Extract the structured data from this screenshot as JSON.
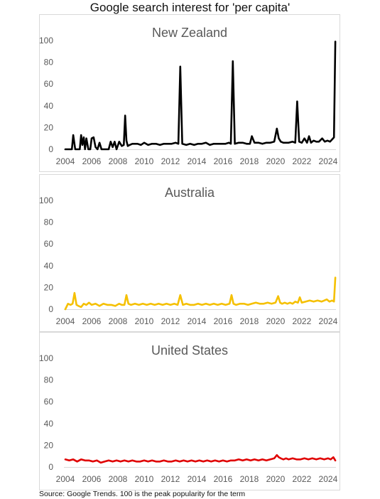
{
  "title": "Google search interest for 'per capita'",
  "source": "Source: Google Trends.  100 is the peak popularity for the term",
  "chart_data": [
    {
      "type": "line",
      "title": "New Zealand",
      "color": "#000000",
      "ylim": [
        0,
        100
      ],
      "yticks": [
        "0",
        "20",
        "40",
        "60",
        "80",
        "100"
      ],
      "xlim": [
        2004,
        2024.6
      ],
      "xticks": [
        "2004",
        "2006",
        "2008",
        "2010",
        "2012",
        "2014",
        "2016",
        "2018",
        "2020",
        "2022",
        "2024"
      ],
      "grid": false,
      "series": [
        {
          "x": [
            2004.0,
            2004.3,
            2004.5,
            2004.6,
            2004.75,
            2004.9,
            2005.1,
            2005.2,
            2005.3,
            2005.4,
            2005.5,
            2005.6,
            2005.75,
            2005.9,
            2006.0,
            2006.15,
            2006.3,
            2006.45,
            2006.6,
            2006.75,
            2006.9,
            2007.1,
            2007.3,
            2007.45,
            2007.6,
            2007.75,
            2007.9,
            2008.1,
            2008.3,
            2008.45,
            2008.55,
            2008.65,
            2008.75,
            2008.9,
            2009.1,
            2009.3,
            2009.5,
            2009.75,
            2010.0,
            2010.3,
            2010.6,
            2010.9,
            2011.2,
            2011.5,
            2011.8,
            2012.1,
            2012.4,
            2012.6,
            2012.75,
            2012.9,
            2013.2,
            2013.5,
            2013.8,
            2014.1,
            2014.4,
            2014.7,
            2015.0,
            2015.3,
            2015.6,
            2015.9,
            2016.2,
            2016.45,
            2016.6,
            2016.75,
            2016.9,
            2017.2,
            2017.5,
            2017.8,
            2018.05,
            2018.2,
            2018.4,
            2018.7,
            2019.0,
            2019.3,
            2019.6,
            2019.9,
            2020.1,
            2020.25,
            2020.4,
            2020.6,
            2020.8,
            2021.0,
            2021.3,
            2021.5,
            2021.65,
            2021.8,
            2022.0,
            2022.2,
            2022.4,
            2022.55,
            2022.7,
            2022.9,
            2023.1,
            2023.3,
            2023.55,
            2023.75,
            2023.95,
            2024.15,
            2024.3,
            2024.45,
            2024.55
          ],
          "y": [
            0,
            0,
            0,
            13,
            0,
            0,
            0,
            13,
            4,
            11,
            0,
            10,
            0,
            0,
            10,
            11,
            2,
            0,
            6,
            0,
            0,
            0,
            0,
            7,
            2,
            7,
            0,
            7,
            3,
            4,
            31,
            8,
            3,
            4,
            5,
            5,
            5,
            4,
            6,
            4,
            5,
            5,
            4,
            5,
            5,
            5,
            6,
            5,
            76,
            5,
            4,
            5,
            4,
            5,
            5,
            6,
            4,
            5,
            5,
            5,
            5,
            6,
            5,
            81,
            5,
            6,
            6,
            5,
            5,
            12,
            6,
            6,
            5,
            6,
            6,
            7,
            19,
            10,
            7,
            6,
            6,
            6,
            7,
            6,
            44,
            7,
            6,
            10,
            6,
            12,
            6,
            8,
            7,
            7,
            10,
            7,
            8,
            7,
            9,
            11,
            99
          ]
        }
      ]
    },
    {
      "type": "line",
      "title": "Australia",
      "color": "#f5c000",
      "ylim": [
        0,
        100
      ],
      "yticks": [
        "0",
        "20",
        "40",
        "60",
        "80",
        "100"
      ],
      "xlim": [
        2004,
        2024.6
      ],
      "xticks": [
        "2004",
        "2006",
        "2008",
        "2010",
        "2012",
        "2014",
        "2016",
        "2018",
        "2020",
        "2022",
        "2024"
      ],
      "grid": false,
      "series": [
        {
          "x": [
            2004.0,
            2004.2,
            2004.4,
            2004.55,
            2004.7,
            2004.85,
            2005.0,
            2005.2,
            2005.4,
            2005.6,
            2005.8,
            2006.0,
            2006.3,
            2006.6,
            2006.9,
            2007.2,
            2007.5,
            2007.8,
            2008.1,
            2008.3,
            2008.5,
            2008.65,
            2008.8,
            2009.0,
            2009.3,
            2009.6,
            2009.9,
            2010.2,
            2010.5,
            2010.8,
            2011.1,
            2011.4,
            2011.7,
            2012.0,
            2012.3,
            2012.55,
            2012.75,
            2012.95,
            2013.2,
            2013.5,
            2013.8,
            2014.1,
            2014.4,
            2014.7,
            2015.0,
            2015.3,
            2015.6,
            2015.9,
            2016.2,
            2016.5,
            2016.65,
            2016.8,
            2017.0,
            2017.3,
            2017.6,
            2017.9,
            2018.2,
            2018.5,
            2018.8,
            2019.1,
            2019.4,
            2019.7,
            2020.0,
            2020.2,
            2020.35,
            2020.5,
            2020.7,
            2020.9,
            2021.1,
            2021.3,
            2021.5,
            2021.7,
            2021.85,
            2022.0,
            2022.3,
            2022.6,
            2022.9,
            2023.2,
            2023.5,
            2023.7,
            2023.9,
            2024.1,
            2024.3,
            2024.45,
            2024.55
          ],
          "y": [
            0,
            5,
            4,
            5,
            15,
            4,
            3,
            2,
            5,
            4,
            6,
            4,
            5,
            3,
            5,
            4,
            4,
            3,
            5,
            4,
            4,
            13,
            5,
            4,
            5,
            4,
            5,
            4,
            5,
            4,
            5,
            4,
            5,
            4,
            5,
            4,
            13,
            4,
            5,
            4,
            4,
            5,
            4,
            5,
            4,
            5,
            4,
            5,
            4,
            5,
            13,
            5,
            4,
            5,
            5,
            4,
            5,
            6,
            5,
            5,
            6,
            5,
            6,
            12,
            6,
            5,
            6,
            5,
            6,
            5,
            7,
            6,
            11,
            6,
            7,
            8,
            7,
            8,
            7,
            8,
            9,
            7,
            8,
            7,
            29
          ]
        }
      ]
    },
    {
      "type": "line",
      "title": "United States",
      "color": "#e00000",
      "ylim": [
        0,
        100
      ],
      "yticks": [
        "0",
        "20",
        "40",
        "60",
        "80",
        "100"
      ],
      "xlim": [
        2004,
        2024.6
      ],
      "xticks": [
        "2004",
        "2006",
        "2008",
        "2010",
        "2012",
        "2014",
        "2016",
        "2018",
        "2020",
        "2022",
        "2024"
      ],
      "grid": false,
      "series": [
        {
          "x": [
            2004.0,
            2004.3,
            2004.6,
            2004.9,
            2005.2,
            2005.5,
            2005.8,
            2006.1,
            2006.4,
            2006.7,
            2007.0,
            2007.3,
            2007.6,
            2007.9,
            2008.2,
            2008.5,
            2008.8,
            2009.1,
            2009.4,
            2009.7,
            2010.0,
            2010.3,
            2010.6,
            2010.9,
            2011.2,
            2011.5,
            2011.8,
            2012.1,
            2012.4,
            2012.7,
            2013.0,
            2013.3,
            2013.6,
            2013.9,
            2014.2,
            2014.5,
            2014.8,
            2015.1,
            2015.4,
            2015.7,
            2016.0,
            2016.3,
            2016.6,
            2016.9,
            2017.2,
            2017.5,
            2017.8,
            2018.1,
            2018.4,
            2018.7,
            2019.0,
            2019.3,
            2019.6,
            2019.9,
            2020.1,
            2020.25,
            2020.4,
            2020.6,
            2020.8,
            2021.0,
            2021.3,
            2021.6,
            2021.9,
            2022.2,
            2022.5,
            2022.8,
            2023.1,
            2023.4,
            2023.7,
            2024.0,
            2024.2,
            2024.4,
            2024.55
          ],
          "y": [
            7,
            6,
            7,
            5,
            7,
            6,
            6,
            5,
            6,
            4,
            5,
            6,
            5,
            6,
            5,
            6,
            5,
            6,
            5,
            5,
            6,
            5,
            6,
            5,
            5,
            6,
            5,
            5,
            6,
            5,
            6,
            5,
            6,
            5,
            6,
            5,
            6,
            5,
            6,
            5,
            6,
            5,
            6,
            6,
            7,
            6,
            7,
            6,
            7,
            6,
            7,
            6,
            7,
            8,
            11,
            9,
            8,
            7,
            8,
            7,
            8,
            7,
            7,
            8,
            7,
            8,
            7,
            8,
            7,
            8,
            7,
            9,
            6
          ]
        }
      ]
    }
  ]
}
